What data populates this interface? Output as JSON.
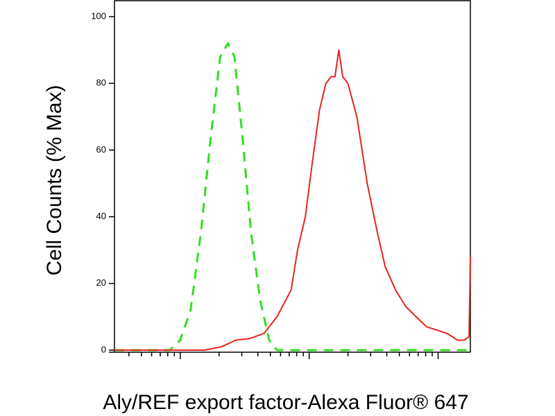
{
  "chart_data": {
    "type": "line",
    "x_label": "Aly/REF export factor-Alexa Fluor® 647",
    "y_label": "Cell Counts (% Max)",
    "xlim": [
      0.49,
      3.25
    ],
    "ylim": [
      0,
      100
    ],
    "xticks": [
      1,
      2,
      3
    ],
    "yticks": [
      0,
      20,
      40,
      60,
      80,
      100
    ],
    "series": [
      {
        "color": "#33dd22",
        "dashed": true,
        "x": [
          0.49,
          0.92,
          1.0,
          1.08,
          1.16,
          1.24,
          1.31,
          1.37,
          1.42,
          1.48,
          1.55,
          1.62,
          1.69,
          1.75,
          3.25
        ],
        "values": [
          0,
          0,
          3,
          12,
          35,
          65,
          88,
          92,
          88,
          65,
          35,
          15,
          3,
          0,
          0
        ]
      },
      {
        "color": "#e8231c",
        "dashed": false,
        "x": [
          0.49,
          1.19,
          1.32,
          1.43,
          1.54,
          1.65,
          1.75,
          1.86,
          1.91,
          1.97,
          2.02,
          2.08,
          2.13,
          2.17,
          2.2,
          2.23,
          2.26,
          2.3,
          2.37,
          2.45,
          2.53,
          2.59,
          2.67,
          2.75,
          2.83,
          2.91,
          2.99,
          3.07,
          3.15,
          3.2,
          3.24,
          3.25
        ],
        "values": [
          0,
          0,
          1,
          3,
          3.5,
          5,
          10,
          18,
          30,
          40,
          55,
          72,
          80,
          82,
          82,
          90,
          82,
          80,
          70,
          50,
          35,
          25,
          18,
          13,
          10,
          7,
          6,
          5,
          3,
          3,
          4,
          28
        ]
      }
    ]
  }
}
